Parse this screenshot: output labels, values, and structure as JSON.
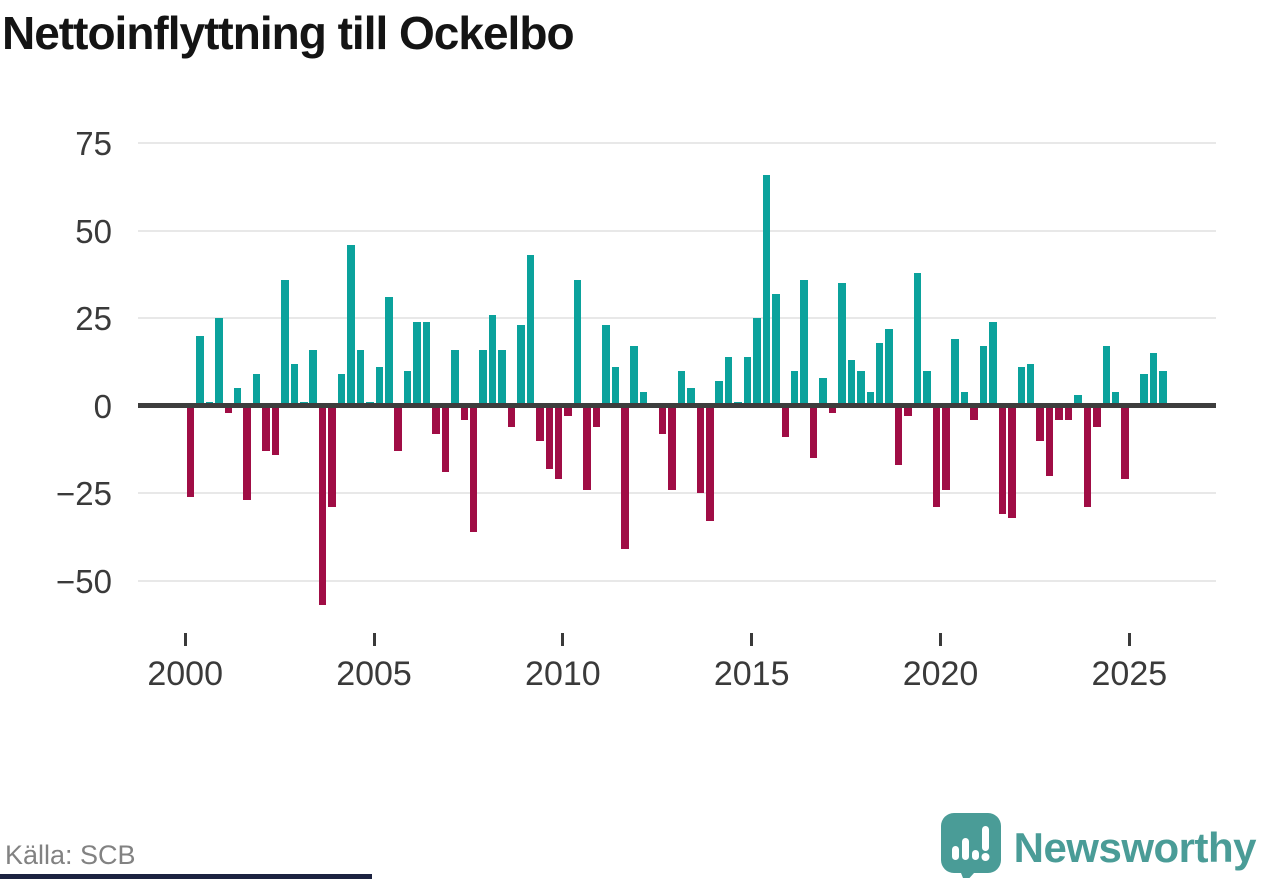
{
  "title": "Nettoinflyttning till Ockelbo",
  "footer": {
    "source": "Källa: SCB",
    "brand": "Newsworthy"
  },
  "colors": {
    "positive_bar": "#0ba29c",
    "negative_bar": "#a00d45",
    "gridline": "#e8e8e8",
    "zero_line": "#3d3d3d",
    "axis_text": "#3a3a3a",
    "title_text": "#141414",
    "source_text": "#828282",
    "brand_teal": "#4a9c97",
    "bottom_strip": "#1c2240"
  },
  "chart_data": {
    "type": "bar",
    "title": "Nettoinflyttning till Ockelbo",
    "xlabel": "",
    "ylabel": "",
    "grid": true,
    "legend": false,
    "ylim": [
      -60,
      80
    ],
    "y_ticks": [
      75,
      50,
      25,
      0,
      -25,
      -50
    ],
    "y_tick_labels": [
      "75",
      "50",
      "25",
      "0",
      "−25",
      "−50"
    ],
    "x_tick_years": [
      2000,
      2005,
      2010,
      2015,
      2020,
      2025
    ],
    "x_tick_labels": [
      "2000",
      "2005",
      "2010",
      "2015",
      "2020",
      "2025"
    ],
    "quarterly": true,
    "series": [
      {
        "year": 2000,
        "values": [
          -26,
          20,
          1,
          25
        ]
      },
      {
        "year": 2001,
        "values": [
          -2,
          5,
          -27,
          9
        ]
      },
      {
        "year": 2002,
        "values": [
          -13,
          -14,
          36,
          12
        ]
      },
      {
        "year": 2003,
        "values": [
          1,
          16,
          -57,
          -29
        ]
      },
      {
        "year": 2004,
        "values": [
          9,
          46,
          16,
          1
        ]
      },
      {
        "year": 2005,
        "values": [
          11,
          31,
          -13,
          10
        ]
      },
      {
        "year": 2006,
        "values": [
          24,
          24,
          -8,
          -19
        ]
      },
      {
        "year": 2007,
        "values": [
          16,
          -4,
          -36,
          16
        ]
      },
      {
        "year": 2008,
        "values": [
          26,
          16,
          -6,
          23
        ]
      },
      {
        "year": 2009,
        "values": [
          43,
          -10,
          -18,
          -21
        ]
      },
      {
        "year": 2010,
        "values": [
          -3,
          36,
          -24,
          -6
        ]
      },
      {
        "year": 2011,
        "values": [
          23,
          11,
          -41,
          17
        ]
      },
      {
        "year": 2012,
        "values": [
          4,
          0,
          -8,
          -24
        ]
      },
      {
        "year": 2013,
        "values": [
          10,
          5,
          -25,
          -33
        ]
      },
      {
        "year": 2014,
        "values": [
          7,
          14,
          1,
          14
        ]
      },
      {
        "year": 2015,
        "values": [
          25,
          66,
          32,
          -9
        ]
      },
      {
        "year": 2016,
        "values": [
          10,
          36,
          -15,
          8
        ]
      },
      {
        "year": 2017,
        "values": [
          -2,
          35,
          13,
          10
        ]
      },
      {
        "year": 2018,
        "values": [
          4,
          18,
          22,
          -17
        ]
      },
      {
        "year": 2019,
        "values": [
          -3,
          38,
          10,
          -29
        ]
      },
      {
        "year": 2020,
        "values": [
          -24,
          19,
          4,
          -4
        ]
      },
      {
        "year": 2021,
        "values": [
          17,
          24,
          -31,
          -32
        ]
      },
      {
        "year": 2022,
        "values": [
          11,
          12,
          -10,
          -20
        ]
      },
      {
        "year": 2023,
        "values": [
          -4,
          -4,
          3,
          -29
        ]
      },
      {
        "year": 2024,
        "values": [
          -6,
          17,
          4,
          -21
        ]
      },
      {
        "year": 2025,
        "values": [
          0,
          9,
          15,
          10
        ]
      }
    ]
  }
}
